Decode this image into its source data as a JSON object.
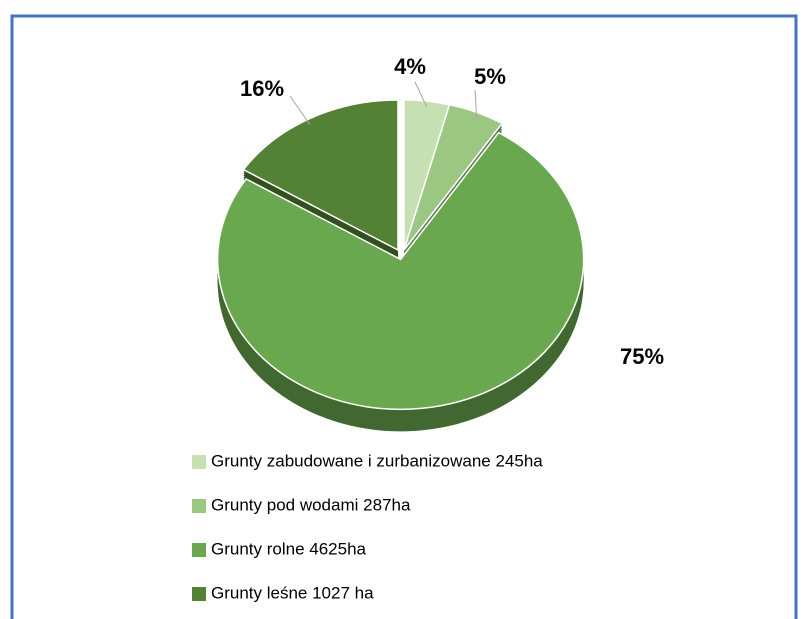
{
  "chart_data": {
    "type": "pie",
    "categories": [
      "Grunty zabudowane i zurbanizowane  245ha",
      "Grunty pod wodami  287ha",
      "Grunty rolne  4625ha",
      "Grunty leśne 1027 ha"
    ],
    "values": [
      4,
      5,
      75,
      16
    ],
    "value_labels": [
      "4%",
      "5%",
      "75%",
      "16%"
    ],
    "colors": [
      "#c6e0b4",
      "#9bc783",
      "#6aa84f",
      "#538135"
    ]
  }
}
